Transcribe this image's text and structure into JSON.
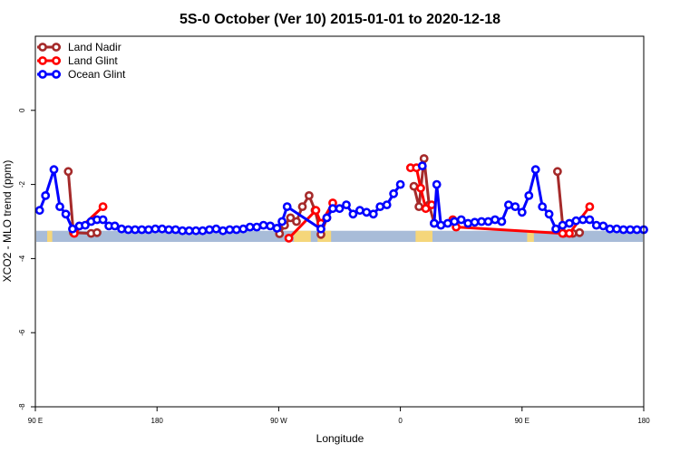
{
  "chart_data": {
    "type": "line",
    "title": "5S-0 October (Ver 10)   2015-01-01 to 2020-12-18",
    "xlabel": "Longitude",
    "ylabel": "XCO2 - MLO trend (ppm)",
    "xlim": [
      90,
      450
    ],
    "ylim": [
      -8,
      2
    ],
    "x_ticks": [
      {
        "value": 90,
        "label": "90 E"
      },
      {
        "value": 162,
        "label": "180"
      },
      {
        "value": 234,
        "label": "90 W"
      },
      {
        "value": 306,
        "label": "0"
      },
      {
        "value": 378,
        "label": "90 E"
      },
      {
        "value": 450,
        "label": "180"
      }
    ],
    "y_ticks": [
      {
        "value": 0,
        "label": "0"
      },
      {
        "value": -2,
        "label": "-2"
      },
      {
        "value": -4,
        "label": "-4"
      },
      {
        "value": -6,
        "label": "-6"
      },
      {
        "value": -8,
        "label": "-8"
      }
    ],
    "grid": false,
    "legend_position": "top-left",
    "colors": {
      "land_nadir": "#a52a2a",
      "land_glint": "#ff0000",
      "ocean_glint": "#0000ff",
      "ocean_band": "#a8bcd8",
      "land_band": "#f5d67a"
    },
    "surface_band": {
      "y_range": [
        -3.55,
        -3.25
      ],
      "land_segments": [
        [
          97,
          100
        ],
        [
          243,
          253
        ],
        [
          257,
          265
        ],
        [
          315,
          325
        ],
        [
          381,
          385
        ]
      ]
    },
    "series": [
      {
        "name": "Land Nadir",
        "color": "#a52a2a",
        "segments": [
          [
            [
              109.5,
              -1.65
            ],
            [
              112.5,
              -3.3
            ],
            [
              123.0,
              -3.32
            ],
            [
              126.5,
              -3.3
            ]
          ],
          [
            [
              234.5,
              -3.33
            ],
            [
              237.5,
              -3.1
            ],
            [
              241.0,
              -2.9
            ],
            [
              244.5,
              -3.0
            ],
            [
              248.0,
              -2.6
            ],
            [
              252.0,
              -2.3
            ],
            [
              255.5,
              -2.7
            ],
            [
              259.0,
              -3.35
            ],
            [
              262.5,
              -2.9
            ]
          ],
          [
            [
              314.0,
              -2.05
            ],
            [
              317.0,
              -2.6
            ],
            [
              320.0,
              -1.3
            ],
            [
              323.0,
              -2.55
            ],
            [
              326.0,
              -3.05
            ]
          ],
          [
            [
              399.0,
              -1.65
            ],
            [
              402.5,
              -3.32
            ],
            [
              408.0,
              -3.32
            ],
            [
              412.0,
              -3.3
            ]
          ]
        ]
      },
      {
        "name": "Land Glint",
        "color": "#ff0000",
        "segments": [
          [
            [
              113.0,
              -3.32
            ],
            [
              130.0,
              -2.6
            ]
          ],
          [
            [
              240.0,
              -3.45
            ],
            [
              256.0,
              -2.7
            ],
            [
              259.0,
              -3.05
            ],
            [
              266.0,
              -2.5
            ]
          ],
          [
            [
              312.0,
              -1.55
            ],
            [
              315.5,
              -1.55
            ],
            [
              318.0,
              -2.1
            ],
            [
              321.0,
              -2.65
            ],
            [
              324.5,
              -2.55
            ]
          ],
          [
            [
              337.0,
              -2.95
            ],
            [
              339.0,
              -3.15
            ],
            [
              402.0,
              -3.32
            ],
            [
              406.0,
              -3.32
            ],
            [
              418.0,
              -2.6
            ]
          ]
        ]
      },
      {
        "name": "Ocean Glint",
        "color": "#0000ff",
        "segments": [
          [
            [
              92.5,
              -2.7
            ],
            [
              96.0,
              -2.3
            ],
            [
              101.0,
              -1.6
            ],
            [
              104.5,
              -2.6
            ],
            [
              108.0,
              -2.8
            ],
            [
              112.0,
              -3.2
            ],
            [
              116.0,
              -3.12
            ],
            [
              119.5,
              -3.1
            ],
            [
              123.0,
              -3.0
            ],
            [
              126.5,
              -2.95
            ],
            [
              130.0,
              -2.95
            ],
            [
              133.5,
              -3.12
            ],
            [
              137.0,
              -3.12
            ],
            [
              141.0,
              -3.2
            ],
            [
              145.0,
              -3.22
            ],
            [
              149.0,
              -3.22
            ],
            [
              153.0,
              -3.22
            ],
            [
              157.0,
              -3.22
            ],
            [
              161.0,
              -3.2
            ],
            [
              165.0,
              -3.2
            ],
            [
              169.0,
              -3.22
            ],
            [
              173.0,
              -3.22
            ],
            [
              177.0,
              -3.25
            ],
            [
              181.0,
              -3.25
            ],
            [
              185.0,
              -3.25
            ],
            [
              189.0,
              -3.25
            ],
            [
              193.0,
              -3.22
            ],
            [
              197.0,
              -3.2
            ],
            [
              201.0,
              -3.25
            ],
            [
              205.0,
              -3.22
            ],
            [
              209.0,
              -3.22
            ],
            [
              213.0,
              -3.2
            ],
            [
              217.0,
              -3.15
            ],
            [
              221.0,
              -3.15
            ],
            [
              225.0,
              -3.1
            ],
            [
              229.0,
              -3.12
            ],
            [
              233.0,
              -3.18
            ],
            [
              236.0,
              -3.0
            ],
            [
              239.0,
              -2.6
            ],
            [
              259.0,
              -3.2
            ],
            [
              262.5,
              -2.9
            ],
            [
              266.0,
              -2.65
            ],
            [
              270.0,
              -2.65
            ],
            [
              274.0,
              -2.55
            ],
            [
              278.0,
              -2.8
            ],
            [
              282.0,
              -2.7
            ],
            [
              286.0,
              -2.75
            ],
            [
              290.0,
              -2.8
            ],
            [
              294.0,
              -2.6
            ],
            [
              298.0,
              -2.55
            ],
            [
              302.0,
              -2.25
            ],
            [
              306.0,
              -2.0
            ]
          ],
          [
            [
              319.0,
              -1.5
            ]
          ],
          [
            [
              326.0,
              -3.05
            ],
            [
              327.5,
              -2.0
            ],
            [
              330.0,
              -3.1
            ],
            [
              334.0,
              -3.05
            ],
            [
              338.0,
              -3.0
            ],
            [
              342.0,
              -2.95
            ],
            [
              346.0,
              -3.05
            ],
            [
              350.0,
              -3.02
            ],
            [
              354.0,
              -3.0
            ],
            [
              358.0,
              -3.0
            ],
            [
              362.0,
              -2.95
            ],
            [
              366.0,
              -3.0
            ],
            [
              370.0,
              -2.55
            ],
            [
              374.0,
              -2.6
            ],
            [
              378.0,
              -2.75
            ],
            [
              382.0,
              -2.3
            ],
            [
              386.0,
              -1.6
            ],
            [
              390.0,
              -2.6
            ],
            [
              394.0,
              -2.8
            ],
            [
              398.0,
              -3.2
            ],
            [
              402.0,
              -3.1
            ],
            [
              406.0,
              -3.05
            ],
            [
              410.0,
              -2.98
            ],
            [
              414.0,
              -2.95
            ],
            [
              418.0,
              -2.95
            ],
            [
              422.0,
              -3.1
            ],
            [
              426.0,
              -3.12
            ],
            [
              430.0,
              -3.2
            ],
            [
              434.0,
              -3.2
            ],
            [
              438.0,
              -3.22
            ],
            [
              442.0,
              -3.22
            ],
            [
              446.0,
              -3.22
            ],
            [
              450.0,
              -3.22
            ]
          ]
        ]
      }
    ]
  }
}
